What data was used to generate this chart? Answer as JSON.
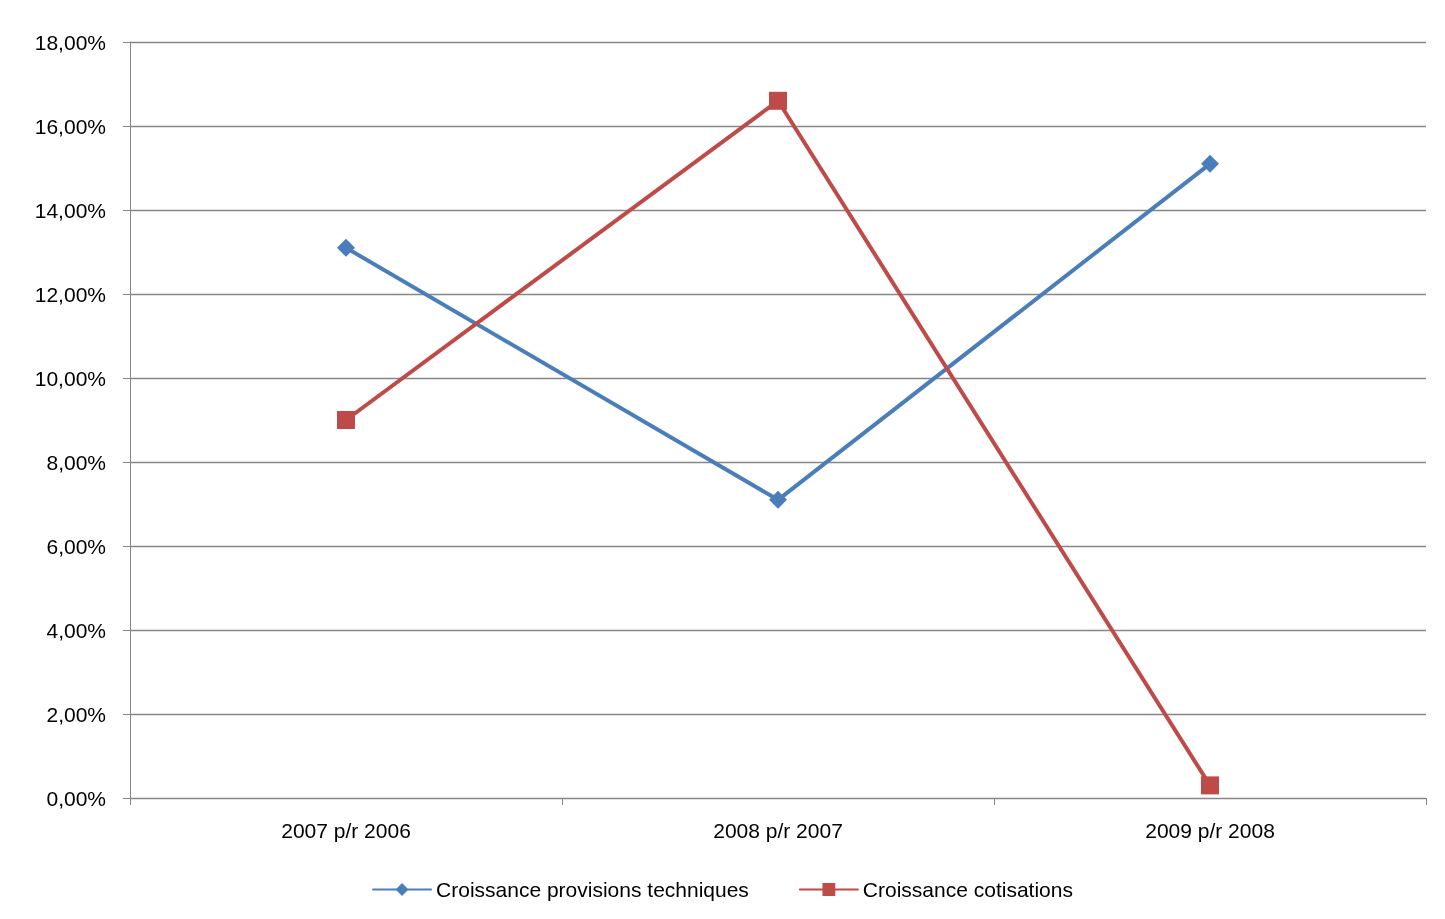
{
  "chart_data": {
    "type": "line",
    "categories": [
      "2007 p/r 2006",
      "2008 p/r 2007",
      "2009 p/r 2008"
    ],
    "series": [
      {
        "name": "Croissance provisions techniques",
        "color": "#4a7ebb",
        "marker": "diamond",
        "values": [
          13.1,
          7.1,
          15.1
        ]
      },
      {
        "name": "Croissance cotisations",
        "color": "#be4b48",
        "marker": "square",
        "values": [
          9.0,
          16.6,
          0.3
        ]
      }
    ],
    "ylim": [
      0,
      18
    ],
    "yticks": [
      {
        "value": 0,
        "label": "0,00%"
      },
      {
        "value": 2,
        "label": "2,00%"
      },
      {
        "value": 4,
        "label": "4,00%"
      },
      {
        "value": 6,
        "label": "6,00%"
      },
      {
        "value": 8,
        "label": "8,00%"
      },
      {
        "value": 10,
        "label": "10,00%"
      },
      {
        "value": 12,
        "label": "12,00%"
      },
      {
        "value": 14,
        "label": "14,00%"
      },
      {
        "value": 16,
        "label": "16,00%"
      },
      {
        "value": 18,
        "label": "18,00%"
      }
    ],
    "grid": "y",
    "legend": "bottom",
    "line_style": "solid"
  }
}
